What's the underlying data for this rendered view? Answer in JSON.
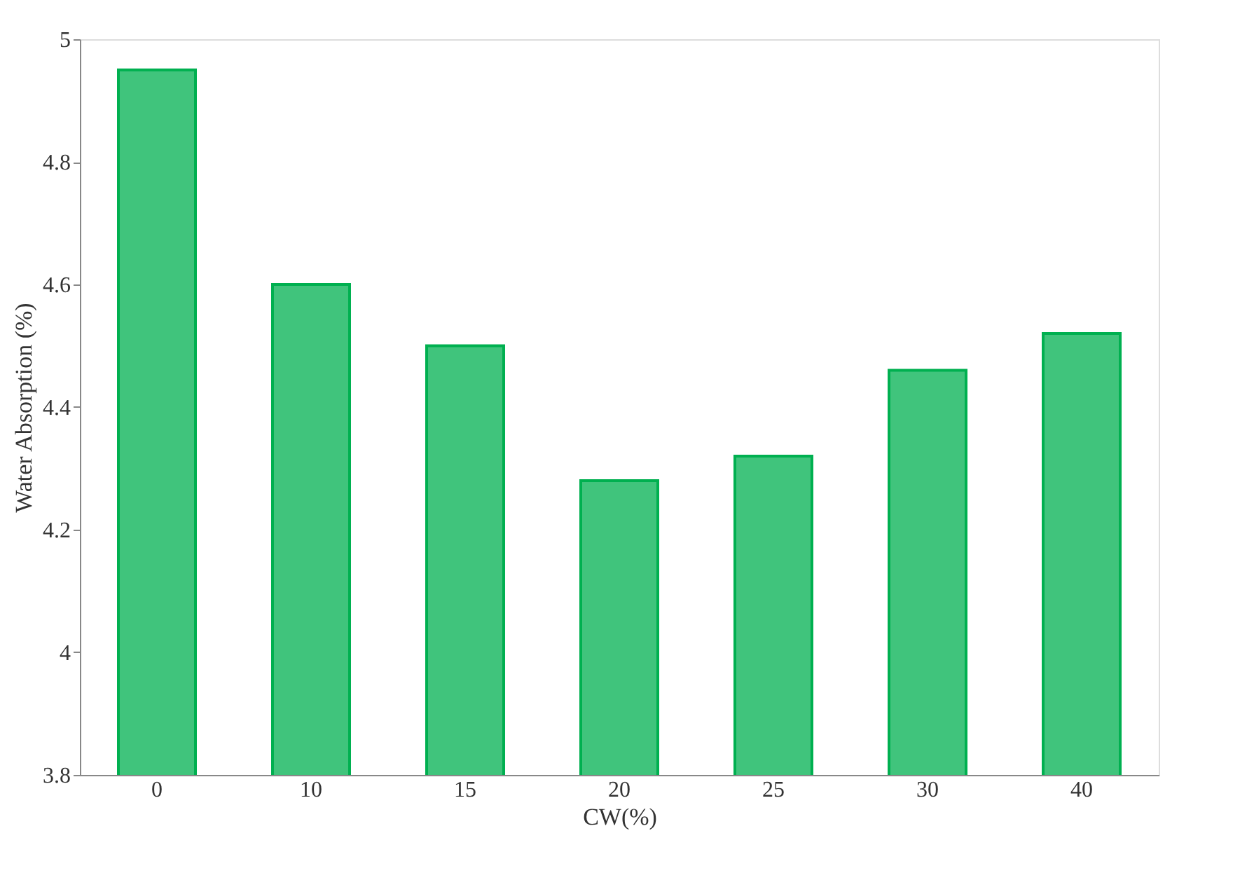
{
  "chart_data": {
    "type": "bar",
    "xlabel": "CW(%)",
    "ylabel": "Water Absorption (%)",
    "categories": [
      "0",
      "10",
      "15",
      "20",
      "25",
      "30",
      "40"
    ],
    "values": [
      4.95,
      4.6,
      4.5,
      4.28,
      4.32,
      4.46,
      4.52
    ],
    "color": "#00b050",
    "ylim": [
      3.8,
      5
    ],
    "yticks": [
      3.8,
      4,
      4.2,
      4.4,
      4.6,
      4.8,
      5
    ],
    "grid": false
  }
}
